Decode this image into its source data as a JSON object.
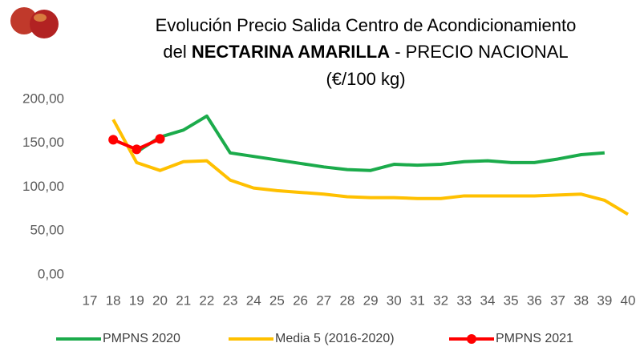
{
  "chart_data": {
    "type": "line",
    "title": [
      "Evolución Precio Salida Centro de Acondicionamiento",
      "del ",
      "NECTARINA AMARILLA",
      " - PRECIO NACIONAL",
      "(€/100 kg)"
    ],
    "x": [
      17,
      18,
      19,
      20,
      21,
      22,
      23,
      24,
      25,
      26,
      27,
      28,
      29,
      30,
      31,
      32,
      33,
      34,
      35,
      36,
      37,
      38,
      39,
      40
    ],
    "series": [
      {
        "name": "PMPNS 2020",
        "color": "#1bab4b",
        "marker": false,
        "values": [
          null,
          null,
          140,
          157,
          165,
          181,
          139,
          135,
          131,
          127,
          123,
          120,
          119,
          126,
          125,
          126,
          129,
          130,
          128,
          128,
          132,
          137,
          139,
          null
        ]
      },
      {
        "name": "Media 5 (2016-2020)",
        "color": "#ffc000",
        "marker": false,
        "values": [
          null,
          177,
          128,
          119,
          129,
          130,
          108,
          99,
          96,
          94,
          92,
          89,
          88,
          88,
          87,
          87,
          90,
          90,
          90,
          90,
          91,
          92,
          85,
          69
        ]
      },
      {
        "name": "PMPNS 2021",
        "color": "#ff0000",
        "marker": true,
        "values": [
          null,
          154,
          143,
          155,
          null,
          null,
          null,
          null,
          null,
          null,
          null,
          null,
          null,
          null,
          null,
          null,
          null,
          null,
          null,
          null,
          null,
          null,
          null,
          null
        ]
      }
    ],
    "xlim": [
      17,
      40
    ],
    "xticks": [
      17,
      18,
      19,
      20,
      21,
      22,
      23,
      24,
      25,
      26,
      27,
      28,
      29,
      30,
      31,
      32,
      33,
      34,
      35,
      36,
      37,
      38,
      39,
      40
    ],
    "ylim": [
      0,
      200
    ],
    "yticks": [
      {
        "value": 0,
        "label": "0,00"
      },
      {
        "value": 50,
        "label": "50,00"
      },
      {
        "value": 100,
        "label": "100,00"
      },
      {
        "value": 150,
        "label": "150,00"
      },
      {
        "value": 200,
        "label": "200,00"
      }
    ],
    "grid": false
  }
}
